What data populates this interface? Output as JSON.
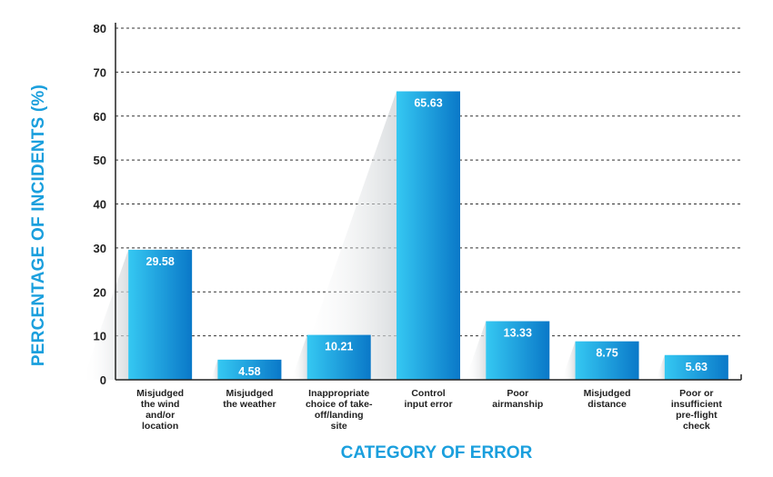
{
  "chart_data": {
    "type": "bar",
    "title": "",
    "xlabel": "CATEGORY OF ERROR",
    "ylabel": "PERCENTAGE OF INCIDENTS (%)",
    "ylim": [
      0,
      80
    ],
    "yticks": [
      0,
      10,
      20,
      30,
      40,
      50,
      60,
      70,
      80
    ],
    "grid": true,
    "categories": [
      "Misjudged the wind and/or location",
      "Misjudged the weather",
      "Inappropriate choice of take-off/landing site",
      "Control input error",
      "Poor airmanship",
      "Misjudged distance",
      "Poor or insufficient pre-flight check"
    ],
    "category_lines": [
      [
        "Misjudged",
        "the wind",
        "and/or",
        "location"
      ],
      [
        "Misjudged",
        "the weather"
      ],
      [
        "Inappropriate",
        "choice of take-",
        "off/landing",
        "site"
      ],
      [
        "Control",
        "input error"
      ],
      [
        "Poor",
        "airmanship"
      ],
      [
        "Misjudged",
        "distance"
      ],
      [
        "Poor or",
        "insufficient",
        "pre-flight",
        "check"
      ]
    ],
    "values": [
      29.58,
      4.58,
      10.21,
      65.63,
      13.33,
      8.75,
      5.63
    ],
    "value_labels": [
      "29.58",
      "4.58",
      "10.21",
      "65.63",
      "13.33",
      "8.75",
      "5.63"
    ],
    "colors": {
      "bar_light": "#35c8f2",
      "bar_dark": "#0a78c8",
      "label_accent": "#1a9fdd",
      "grid": "#333333"
    }
  }
}
